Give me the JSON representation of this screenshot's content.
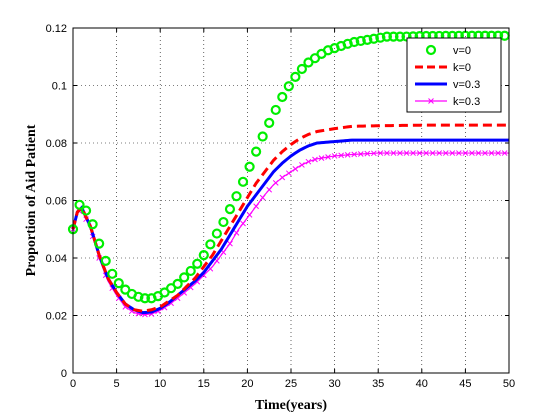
{
  "chart_data": {
    "type": "line",
    "xlabel": "Time(years)",
    "ylabel": "Proportion of Aid Patient",
    "xlim": [
      0,
      50
    ],
    "ylim": [
      0,
      0.12
    ],
    "x_ticks": [
      "0",
      "5",
      "10",
      "15",
      "20",
      "25",
      "30",
      "35",
      "40",
      "45",
      "50"
    ],
    "y_ticks": [
      "0",
      "0.02",
      "0.04",
      "0.06",
      "0.08",
      "0.1",
      "0.12"
    ],
    "grid": true,
    "legend_position": "top-right",
    "series": [
      {
        "name": "v=0",
        "color": "#00ee00",
        "style": "circle-markers",
        "points": [
          [
            0,
            0.05
          ],
          [
            0.5,
            0.058
          ],
          [
            1,
            0.059
          ],
          [
            2,
            0.054
          ],
          [
            3,
            0.045
          ],
          [
            4,
            0.037
          ],
          [
            5,
            0.032
          ],
          [
            6,
            0.029
          ],
          [
            7,
            0.027
          ],
          [
            8,
            0.026
          ],
          [
            9,
            0.026
          ],
          [
            10,
            0.027
          ],
          [
            11,
            0.029
          ],
          [
            12,
            0.031
          ],
          [
            13,
            0.034
          ],
          [
            14,
            0.037
          ],
          [
            15,
            0.041
          ],
          [
            16,
            0.046
          ],
          [
            17,
            0.051
          ],
          [
            18,
            0.057
          ],
          [
            19,
            0.063
          ],
          [
            20,
            0.07
          ],
          [
            21,
            0.077
          ],
          [
            22,
            0.084
          ],
          [
            23,
            0.09
          ],
          [
            24,
            0.096
          ],
          [
            25,
            0.101
          ],
          [
            26,
            0.105
          ],
          [
            27,
            0.108
          ],
          [
            28,
            0.11
          ],
          [
            29,
            0.112
          ],
          [
            30,
            0.113
          ],
          [
            32,
            0.115
          ],
          [
            34,
            0.116
          ],
          [
            36,
            0.117
          ],
          [
            38,
            0.117
          ],
          [
            40,
            0.1172
          ],
          [
            45,
            0.1173
          ],
          [
            50,
            0.1173
          ]
        ]
      },
      {
        "name": "k=0",
        "color": "#ff0000",
        "style": "dashed",
        "points": [
          [
            0,
            0.05
          ],
          [
            0.5,
            0.056
          ],
          [
            1,
            0.0575
          ],
          [
            2,
            0.051
          ],
          [
            3,
            0.041
          ],
          [
            4,
            0.033
          ],
          [
            5,
            0.028
          ],
          [
            6,
            0.024
          ],
          [
            7,
            0.022
          ],
          [
            8,
            0.0215
          ],
          [
            9,
            0.022
          ],
          [
            10,
            0.023
          ],
          [
            11,
            0.025
          ],
          [
            12,
            0.027
          ],
          [
            13,
            0.03
          ],
          [
            14,
            0.033
          ],
          [
            15,
            0.037
          ],
          [
            16,
            0.041
          ],
          [
            17,
            0.046
          ],
          [
            18,
            0.051
          ],
          [
            19,
            0.056
          ],
          [
            20,
            0.061
          ],
          [
            21,
            0.066
          ],
          [
            22,
            0.07
          ],
          [
            23,
            0.074
          ],
          [
            24,
            0.077
          ],
          [
            25,
            0.0795
          ],
          [
            26,
            0.0815
          ],
          [
            27,
            0.083
          ],
          [
            28,
            0.084
          ],
          [
            30,
            0.085
          ],
          [
            32,
            0.0858
          ],
          [
            35,
            0.086
          ],
          [
            40,
            0.0862
          ],
          [
            45,
            0.0862
          ],
          [
            50,
            0.0862
          ]
        ]
      },
      {
        "name": "v=0.3",
        "color": "#0000ff",
        "style": "solid",
        "points": [
          [
            0,
            0.05
          ],
          [
            0.5,
            0.056
          ],
          [
            1,
            0.0575
          ],
          [
            2,
            0.051
          ],
          [
            3,
            0.041
          ],
          [
            4,
            0.033
          ],
          [
            5,
            0.028
          ],
          [
            6,
            0.024
          ],
          [
            7,
            0.022
          ],
          [
            8,
            0.021
          ],
          [
            9,
            0.0212
          ],
          [
            10,
            0.0225
          ],
          [
            11,
            0.0245
          ],
          [
            12,
            0.027
          ],
          [
            13,
            0.0295
          ],
          [
            14,
            0.032
          ],
          [
            15,
            0.035
          ],
          [
            16,
            0.039
          ],
          [
            17,
            0.043
          ],
          [
            18,
            0.048
          ],
          [
            19,
            0.053
          ],
          [
            20,
            0.058
          ],
          [
            21,
            0.062
          ],
          [
            22,
            0.066
          ],
          [
            23,
            0.07
          ],
          [
            24,
            0.073
          ],
          [
            25,
            0.0755
          ],
          [
            26,
            0.0775
          ],
          [
            27,
            0.079
          ],
          [
            28,
            0.08
          ],
          [
            30,
            0.0805
          ],
          [
            32,
            0.081
          ],
          [
            35,
            0.081
          ],
          [
            40,
            0.081
          ],
          [
            45,
            0.081
          ],
          [
            50,
            0.081
          ]
        ]
      },
      {
        "name": "k=0.3",
        "color": "#ff00ff",
        "style": "x-markers",
        "points": [
          [
            0,
            0.05
          ],
          [
            0.5,
            0.0555
          ],
          [
            1,
            0.057
          ],
          [
            2,
            0.05
          ],
          [
            3,
            0.04
          ],
          [
            4,
            0.032
          ],
          [
            5,
            0.027
          ],
          [
            6,
            0.023
          ],
          [
            7,
            0.021
          ],
          [
            8,
            0.0203
          ],
          [
            9,
            0.0205
          ],
          [
            10,
            0.0218
          ],
          [
            11,
            0.0237
          ],
          [
            12,
            0.026
          ],
          [
            13,
            0.0285
          ],
          [
            14,
            0.031
          ],
          [
            15,
            0.034
          ],
          [
            16,
            0.037
          ],
          [
            17,
            0.041
          ],
          [
            18,
            0.045
          ],
          [
            19,
            0.05
          ],
          [
            20,
            0.054
          ],
          [
            21,
            0.058
          ],
          [
            22,
            0.062
          ],
          [
            23,
            0.0655
          ],
          [
            24,
            0.068
          ],
          [
            25,
            0.07
          ],
          [
            26,
            0.072
          ],
          [
            27,
            0.0735
          ],
          [
            28,
            0.0745
          ],
          [
            30,
            0.0755
          ],
          [
            32,
            0.076
          ],
          [
            35,
            0.0765
          ],
          [
            40,
            0.0765
          ],
          [
            45,
            0.0765
          ],
          [
            50,
            0.0765
          ]
        ]
      }
    ]
  }
}
